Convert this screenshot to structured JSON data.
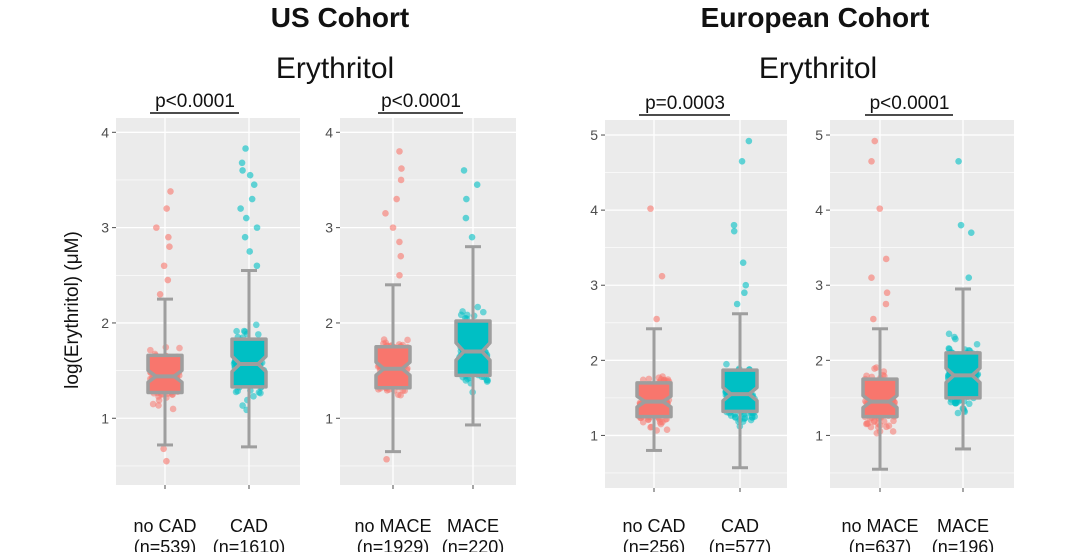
{
  "ylabel": "log(Erythritol) (μM)",
  "cohorts": [
    {
      "title": "US Cohort",
      "subtitle": "Erythritol"
    },
    {
      "title": "European Cohort",
      "subtitle": "Erythritol"
    }
  ],
  "colors": {
    "panel": "#ebebeb",
    "grid": "#ffffff",
    "group_a": "#f8766d",
    "group_b": "#00bfc4",
    "box": "#9e9e9e"
  },
  "chart_data": [
    {
      "type": "box",
      "cohort": "US Cohort",
      "title": "Erythritol",
      "ylim": [
        0.3,
        4.15
      ],
      "yticks": [
        1,
        2,
        3,
        4
      ],
      "pvalue": "p<0.0001",
      "groups": [
        {
          "label": "no CAD",
          "n": "(n=539)",
          "min": 0.72,
          "q1": 1.27,
          "median": 1.44,
          "q3": 1.66,
          "max": 2.25,
          "outliers": [
            2.3,
            2.45,
            2.6,
            2.8,
            2.9,
            3.0,
            3.2,
            3.38,
            0.55,
            0.68
          ]
        },
        {
          "label": "CAD",
          "n": "(n=1610)",
          "min": 0.7,
          "q1": 1.33,
          "median": 1.57,
          "q3": 1.83,
          "max": 2.55,
          "outliers": [
            2.6,
            2.75,
            2.9,
            3.0,
            3.1,
            3.2,
            3.3,
            3.45,
            3.55,
            3.6,
            3.68,
            3.83
          ]
        }
      ]
    },
    {
      "type": "box",
      "cohort": "US Cohort",
      "title": "Erythritol",
      "ylim": [
        0.3,
        4.15
      ],
      "yticks": [
        1,
        2,
        3,
        4
      ],
      "pvalue": "p<0.0001",
      "groups": [
        {
          "label": "no MACE",
          "n": "(n=1929)",
          "min": 0.65,
          "q1": 1.32,
          "median": 1.52,
          "q3": 1.75,
          "max": 2.4,
          "outliers": [
            2.5,
            2.7,
            2.85,
            3.0,
            3.15,
            3.3,
            3.5,
            3.62,
            3.8,
            0.57
          ]
        },
        {
          "label": "MACE",
          "n": "(n=220)",
          "min": 0.93,
          "q1": 1.45,
          "median": 1.7,
          "q3": 2.02,
          "max": 2.8,
          "outliers": [
            2.9,
            3.1,
            3.3,
            3.45,
            3.6
          ]
        }
      ]
    },
    {
      "type": "box",
      "cohort": "European Cohort",
      "title": "Erythritol",
      "ylim": [
        0.3,
        5.2
      ],
      "yticks": [
        1,
        2,
        3,
        4,
        5
      ],
      "pvalue": "p=0.0003",
      "groups": [
        {
          "label": "no CAD",
          "n": "(n=256)",
          "min": 0.8,
          "q1": 1.25,
          "median": 1.45,
          "q3": 1.7,
          "max": 2.42,
          "outliers": [
            2.55,
            3.12,
            4.02
          ]
        },
        {
          "label": "CAD",
          "n": "(n=577)",
          "min": 0.57,
          "q1": 1.32,
          "median": 1.55,
          "q3": 1.87,
          "max": 2.62,
          "outliers": [
            2.75,
            2.9,
            3.0,
            3.3,
            3.72,
            3.8,
            4.65,
            4.92
          ]
        }
      ]
    },
    {
      "type": "box",
      "cohort": "European Cohort",
      "title": "Erythritol",
      "ylim": [
        0.3,
        5.2
      ],
      "yticks": [
        1,
        2,
        3,
        4,
        5
      ],
      "pvalue": "p<0.0001",
      "groups": [
        {
          "label": "no MACE",
          "n": "(n=637)",
          "min": 0.55,
          "q1": 1.25,
          "median": 1.45,
          "q3": 1.75,
          "max": 2.42,
          "outliers": [
            2.55,
            2.75,
            2.9,
            3.1,
            3.35,
            4.02,
            4.65,
            4.92
          ]
        },
        {
          "label": "MACE",
          "n": "(n=196)",
          "min": 0.82,
          "q1": 1.5,
          "median": 1.8,
          "q3": 2.1,
          "max": 2.95,
          "outliers": [
            3.1,
            3.7,
            3.8,
            4.65
          ]
        }
      ]
    }
  ]
}
